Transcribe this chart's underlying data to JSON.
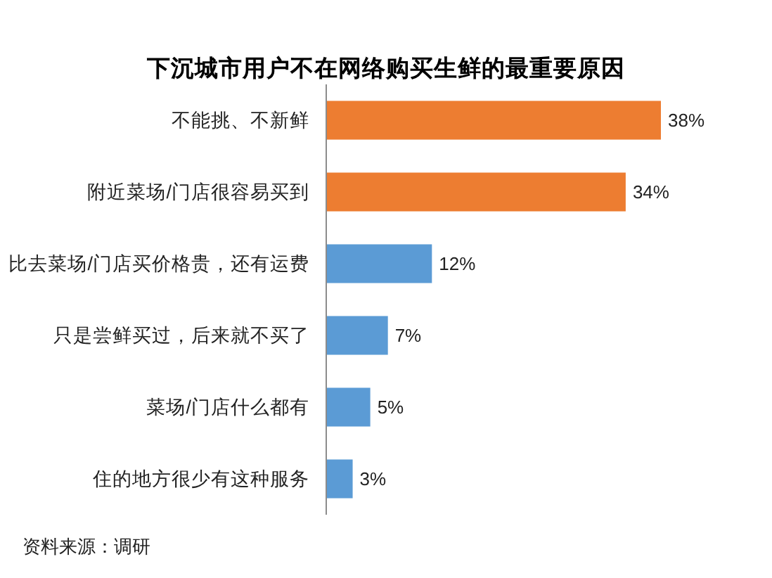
{
  "chart_data": {
    "type": "bar",
    "orientation": "horizontal",
    "title": "下沉城市用户不在网络购买生鲜的最重要原因",
    "categories": [
      "不能挑、不新鲜",
      "附近菜场/门店很容易买到",
      "比去菜场/门店买价格贵，还有运费",
      "只是尝鲜买过，后来就不买了",
      "菜场/门店什么都有",
      "住的地方很少有这种服务"
    ],
    "values": [
      38,
      34,
      12,
      7,
      5,
      3
    ],
    "colors": [
      "#ed7d31",
      "#ed7d31",
      "#5b9bd5",
      "#5b9bd5",
      "#5b9bd5",
      "#5b9bd5"
    ],
    "value_labels": [
      "38%",
      "34%",
      "12%",
      "7%",
      "5%",
      "3%"
    ],
    "annotations": [
      "资料来源：调研"
    ]
  }
}
